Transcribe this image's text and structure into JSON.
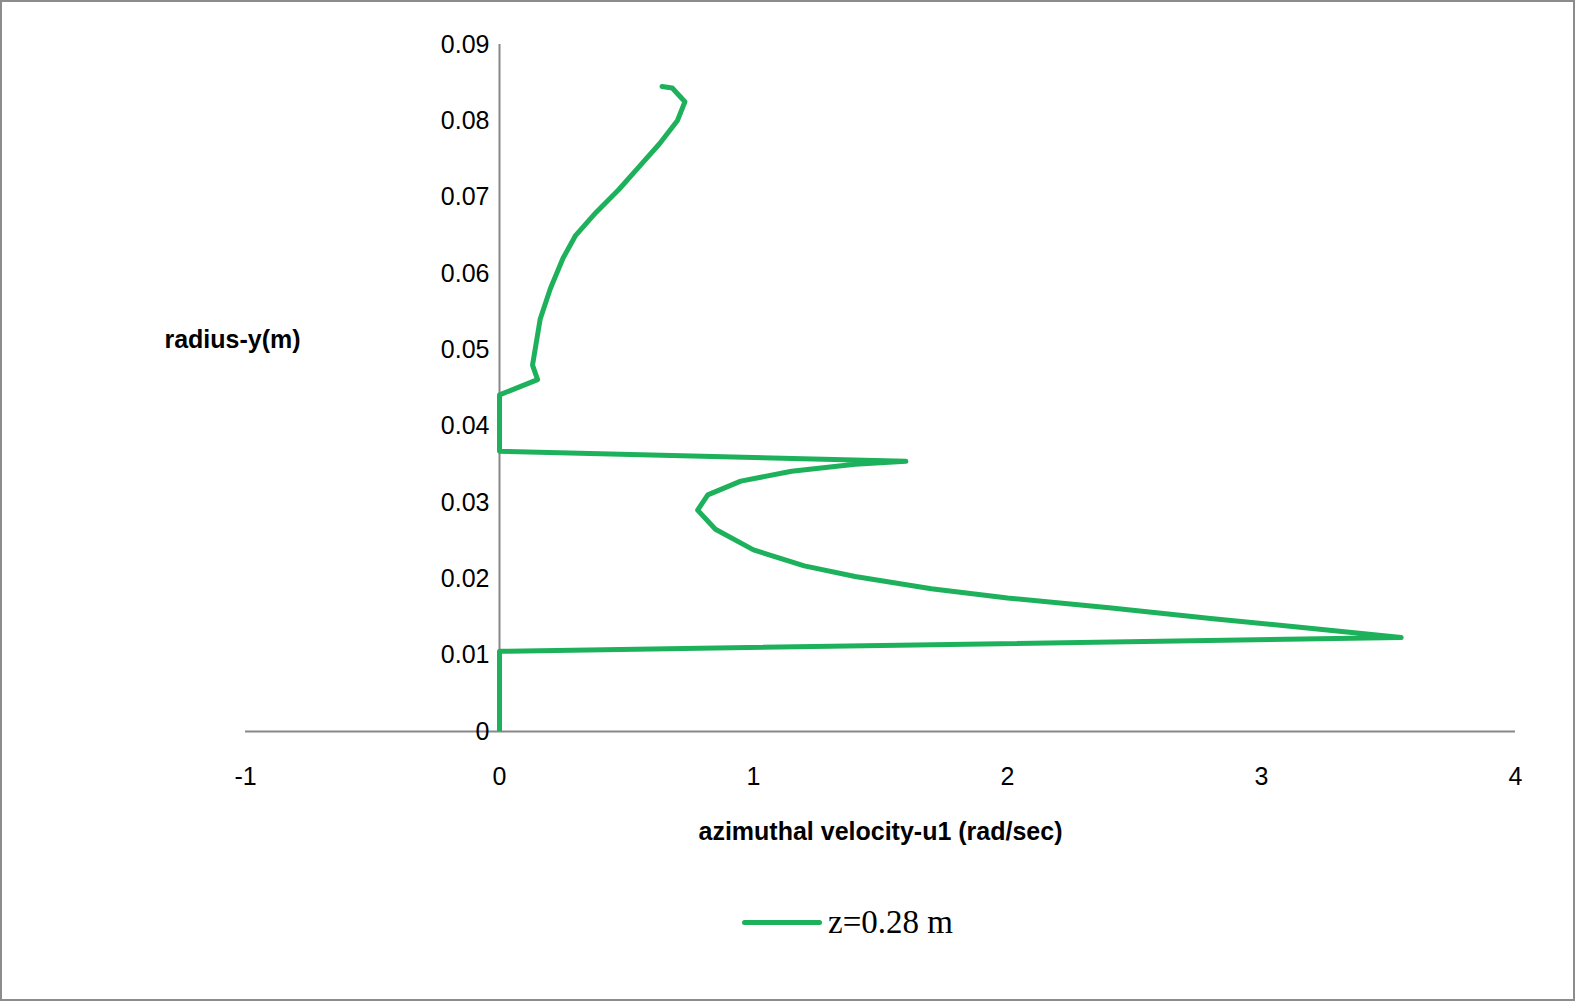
{
  "chart_data": {
    "type": "line",
    "x_label": "azimuthal velocity-u1 (rad/sec)",
    "y_label": "radius-y(m)",
    "xlim": [
      -1,
      4
    ],
    "xticks": [
      -1,
      0,
      1,
      2,
      3,
      4
    ],
    "ylim": [
      0,
      0.09
    ],
    "yticks": [
      0,
      0.01,
      0.02,
      0.03,
      0.04,
      0.05,
      0.06,
      0.07,
      0.08,
      0.09
    ],
    "grid": false,
    "legend": "bottom",
    "series": [
      {
        "name": "z=0.28 m",
        "color": "#1eb15c",
        "x": [
          0,
          0,
          0,
          3.55,
          3.2,
          2.8,
          2.4,
          2.0,
          1.7,
          1.4,
          1.2,
          1.0,
          0.85,
          0.78,
          0.82,
          0.95,
          1.15,
          1.4,
          1.6,
          0,
          0,
          0,
          0.15,
          0.13,
          0.14,
          0.16,
          0.2,
          0.25,
          0.3,
          0.38,
          0.47,
          0.55,
          0.63,
          0.7,
          0.73,
          0.68,
          0.64
        ],
        "values": [
          0,
          0.005,
          0.0105,
          0.0123,
          0.0135,
          0.0148,
          0.0162,
          0.0175,
          0.0187,
          0.0203,
          0.0217,
          0.0238,
          0.0265,
          0.029,
          0.031,
          0.0328,
          0.0341,
          0.035,
          0.0354,
          0.0367,
          0.04,
          0.0441,
          0.0461,
          0.048,
          0.05,
          0.054,
          0.058,
          0.062,
          0.065,
          0.068,
          0.071,
          0.074,
          0.077,
          0.08,
          0.0825,
          0.0843,
          0.0845
        ]
      }
    ]
  }
}
